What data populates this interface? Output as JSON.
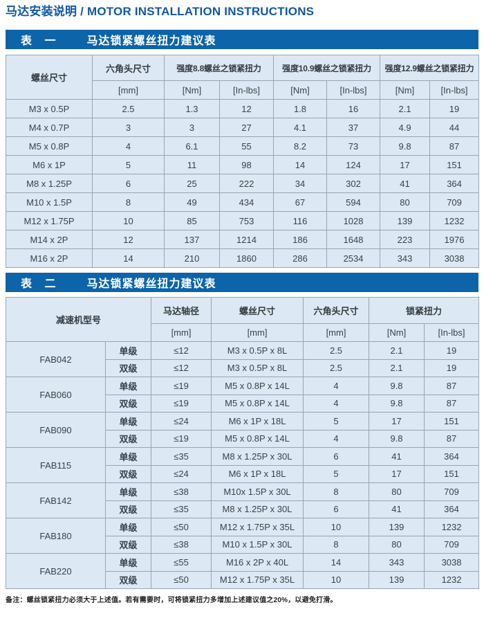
{
  "page_title": "马达安装说明 / MOTOR INSTALLATION INSTRUCTIONS",
  "colors": {
    "banner_blue": "#0d64a8",
    "title_blue": "#1257a3",
    "cell_background": "#dce8f3",
    "border_gray": "#96a6b4"
  },
  "table1": {
    "banner_label": "表 一",
    "banner_title": "马达锁紧螺丝扭力建议表",
    "headers": {
      "screw_size": "螺丝尺寸",
      "hex_size": "六角头尺寸",
      "grade88": "强度8.8螺丝之锁紧扭力",
      "grade109": "强度10.9螺丝之锁紧扭力",
      "grade129": "强度12.9螺丝之锁紧扭力",
      "unit_mm": "[mm]",
      "unit_nm": "[Nm]",
      "unit_inlbs": "[In-lbs]"
    },
    "rows": [
      {
        "size": "M3 x 0.5P",
        "hex_mm": "2.5",
        "g88_nm": "1.3",
        "g88_inlbs": "12",
        "g109_nm": "1.8",
        "g109_inlbs": "16",
        "g129_nm": "2.1",
        "g129_inlbs": "19"
      },
      {
        "size": "M4 x 0.7P",
        "hex_mm": "3",
        "g88_nm": "3",
        "g88_inlbs": "27",
        "g109_nm": "4.1",
        "g109_inlbs": "37",
        "g129_nm": "4.9",
        "g129_inlbs": "44"
      },
      {
        "size": "M5 x 0.8P",
        "hex_mm": "4",
        "g88_nm": "6.1",
        "g88_inlbs": "55",
        "g109_nm": "8.2",
        "g109_inlbs": "73",
        "g129_nm": "9.8",
        "g129_inlbs": "87"
      },
      {
        "size": "M6 x 1P",
        "hex_mm": "5",
        "g88_nm": "11",
        "g88_inlbs": "98",
        "g109_nm": "14",
        "g109_inlbs": "124",
        "g129_nm": "17",
        "g129_inlbs": "151"
      },
      {
        "size": "M8 x 1.25P",
        "hex_mm": "6",
        "g88_nm": "25",
        "g88_inlbs": "222",
        "g109_nm": "34",
        "g109_inlbs": "302",
        "g129_nm": "41",
        "g129_inlbs": "364"
      },
      {
        "size": "M10 x 1.5P",
        "hex_mm": "8",
        "g88_nm": "49",
        "g88_inlbs": "434",
        "g109_nm": "67",
        "g109_inlbs": "594",
        "g129_nm": "80",
        "g129_inlbs": "709"
      },
      {
        "size": "M12 x 1.75P",
        "hex_mm": "10",
        "g88_nm": "85",
        "g88_inlbs": "753",
        "g109_nm": "116",
        "g109_inlbs": "1028",
        "g129_nm": "139",
        "g129_inlbs": "1232"
      },
      {
        "size": "M14 x 2P",
        "hex_mm": "12",
        "g88_nm": "137",
        "g88_inlbs": "1214",
        "g109_nm": "186",
        "g109_inlbs": "1648",
        "g129_nm": "223",
        "g129_inlbs": "1976"
      },
      {
        "size": "M16 x 2P",
        "hex_mm": "14",
        "g88_nm": "210",
        "g88_inlbs": "1860",
        "g109_nm": "286",
        "g109_inlbs": "2534",
        "g129_nm": "343",
        "g129_inlbs": "3038"
      }
    ]
  },
  "table2": {
    "banner_label": "表 二",
    "banner_title": "马达锁紧螺丝扭力建议表",
    "headers": {
      "model": "减速机型号",
      "shaft": "马达轴径",
      "screw": "螺丝尺寸",
      "hex": "六角头尺寸",
      "torque": "锁紧扭力",
      "unit_mm": "[mm]",
      "unit_nm": "[Nm]",
      "unit_inlbs": "[In-lbs]"
    },
    "groups": [
      {
        "model": "FAB042",
        "rows": [
          {
            "stage": "单级",
            "shaft": "≤12",
            "screw": "M3 x 0.5P x 8L",
            "hex": "2.5",
            "nm": "2.1",
            "inlbs": "19"
          },
          {
            "stage": "双级",
            "shaft": "≤12",
            "screw": "M3 x 0.5P x 8L",
            "hex": "2.5",
            "nm": "2.1",
            "inlbs": "19"
          }
        ]
      },
      {
        "model": "FAB060",
        "rows": [
          {
            "stage": "单级",
            "shaft": "≤19",
            "screw": "M5 x 0.8P x 14L",
            "hex": "4",
            "nm": "9.8",
            "inlbs": "87"
          },
          {
            "stage": "双级",
            "shaft": "≤19",
            "screw": "M5 x 0.8P x 14L",
            "hex": "4",
            "nm": "9.8",
            "inlbs": "87"
          }
        ]
      },
      {
        "model": "FAB090",
        "rows": [
          {
            "stage": "单级",
            "shaft": "≤24",
            "screw": "M6 x 1P x 18L",
            "hex": "5",
            "nm": "17",
            "inlbs": "151"
          },
          {
            "stage": "双级",
            "shaft": "≤19",
            "screw": "M5 x 0.8P x 14L",
            "hex": "4",
            "nm": "9.8",
            "inlbs": "87"
          }
        ]
      },
      {
        "model": "FAB115",
        "rows": [
          {
            "stage": "单级",
            "shaft": "≤35",
            "screw": "M8 x 1.25P x 30L",
            "hex": "6",
            "nm": "41",
            "inlbs": "364"
          },
          {
            "stage": "双级",
            "shaft": "≤24",
            "screw": "M6 x 1P x 18L",
            "hex": "5",
            "nm": "17",
            "inlbs": "151"
          }
        ]
      },
      {
        "model": "FAB142",
        "rows": [
          {
            "stage": "单级",
            "shaft": "≤38",
            "screw": "M10x 1.5P x 30L",
            "hex": "8",
            "nm": "80",
            "inlbs": "709"
          },
          {
            "stage": "双级",
            "shaft": "≤35",
            "screw": "M8 x 1.25P x 30L",
            "hex": "6",
            "nm": "41",
            "inlbs": "364"
          }
        ]
      },
      {
        "model": "FAB180",
        "rows": [
          {
            "stage": "单级",
            "shaft": "≤50",
            "screw": "M12 x 1.75P x 35L",
            "hex": "10",
            "nm": "139",
            "inlbs": "1232"
          },
          {
            "stage": "双级",
            "shaft": "≤38",
            "screw": "M10 x 1.5P x 30L",
            "hex": "8",
            "nm": "80",
            "inlbs": "709"
          }
        ]
      },
      {
        "model": "FAB220",
        "rows": [
          {
            "stage": "单级",
            "shaft": "≤55",
            "screw": "M16 x 2P x 40L",
            "hex": "14",
            "nm": "343",
            "inlbs": "3038"
          },
          {
            "stage": "双级",
            "shaft": "≤50",
            "screw": "M12 x 1.75P x 35L",
            "hex": "10",
            "nm": "139",
            "inlbs": "1232"
          }
        ]
      }
    ]
  },
  "note": "备注：螺丝锁紧扭力必须大于上述值。若有需要时，可将锁紧扭力多增加上述建议值之20%，以避免打滑。"
}
